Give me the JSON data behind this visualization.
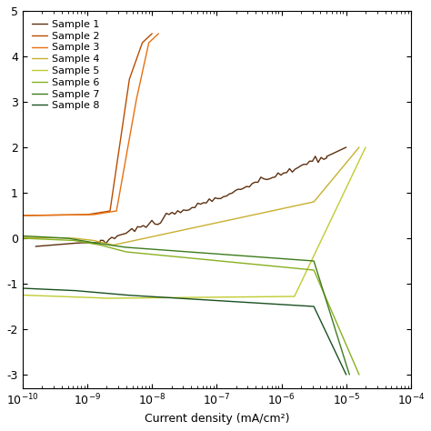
{
  "title": "",
  "xlabel": "Current density (mA/cm²)",
  "ylabel": "",
  "xlim": [
    1e-10,
    0.0001
  ],
  "ylim": [
    -3.3,
    5.0
  ],
  "colors": {
    "Sample 1": "#5c3010",
    "Sample 2": "#b84c00",
    "Sample 3": "#e87010",
    "Sample 4": "#c8b030",
    "Sample 5": "#c0cc30",
    "Sample 6": "#88b020",
    "Sample 7": "#3c7c1c",
    "Sample 8": "#1a5020"
  },
  "legend_labels": [
    "Sample 1",
    "Sample 2",
    "Sample 3",
    "Sample 4",
    "Sample 5",
    "Sample 6",
    "Sample 7",
    "Sample 8"
  ],
  "ytick_vals": [
    -3,
    -2,
    -1,
    0,
    1,
    2,
    3,
    4,
    5
  ],
  "ytick_labels": [
    "-3",
    "-2",
    "-1",
    "0",
    "1",
    "2",
    "3",
    "4",
    "5"
  ],
  "background": "#ffffff"
}
